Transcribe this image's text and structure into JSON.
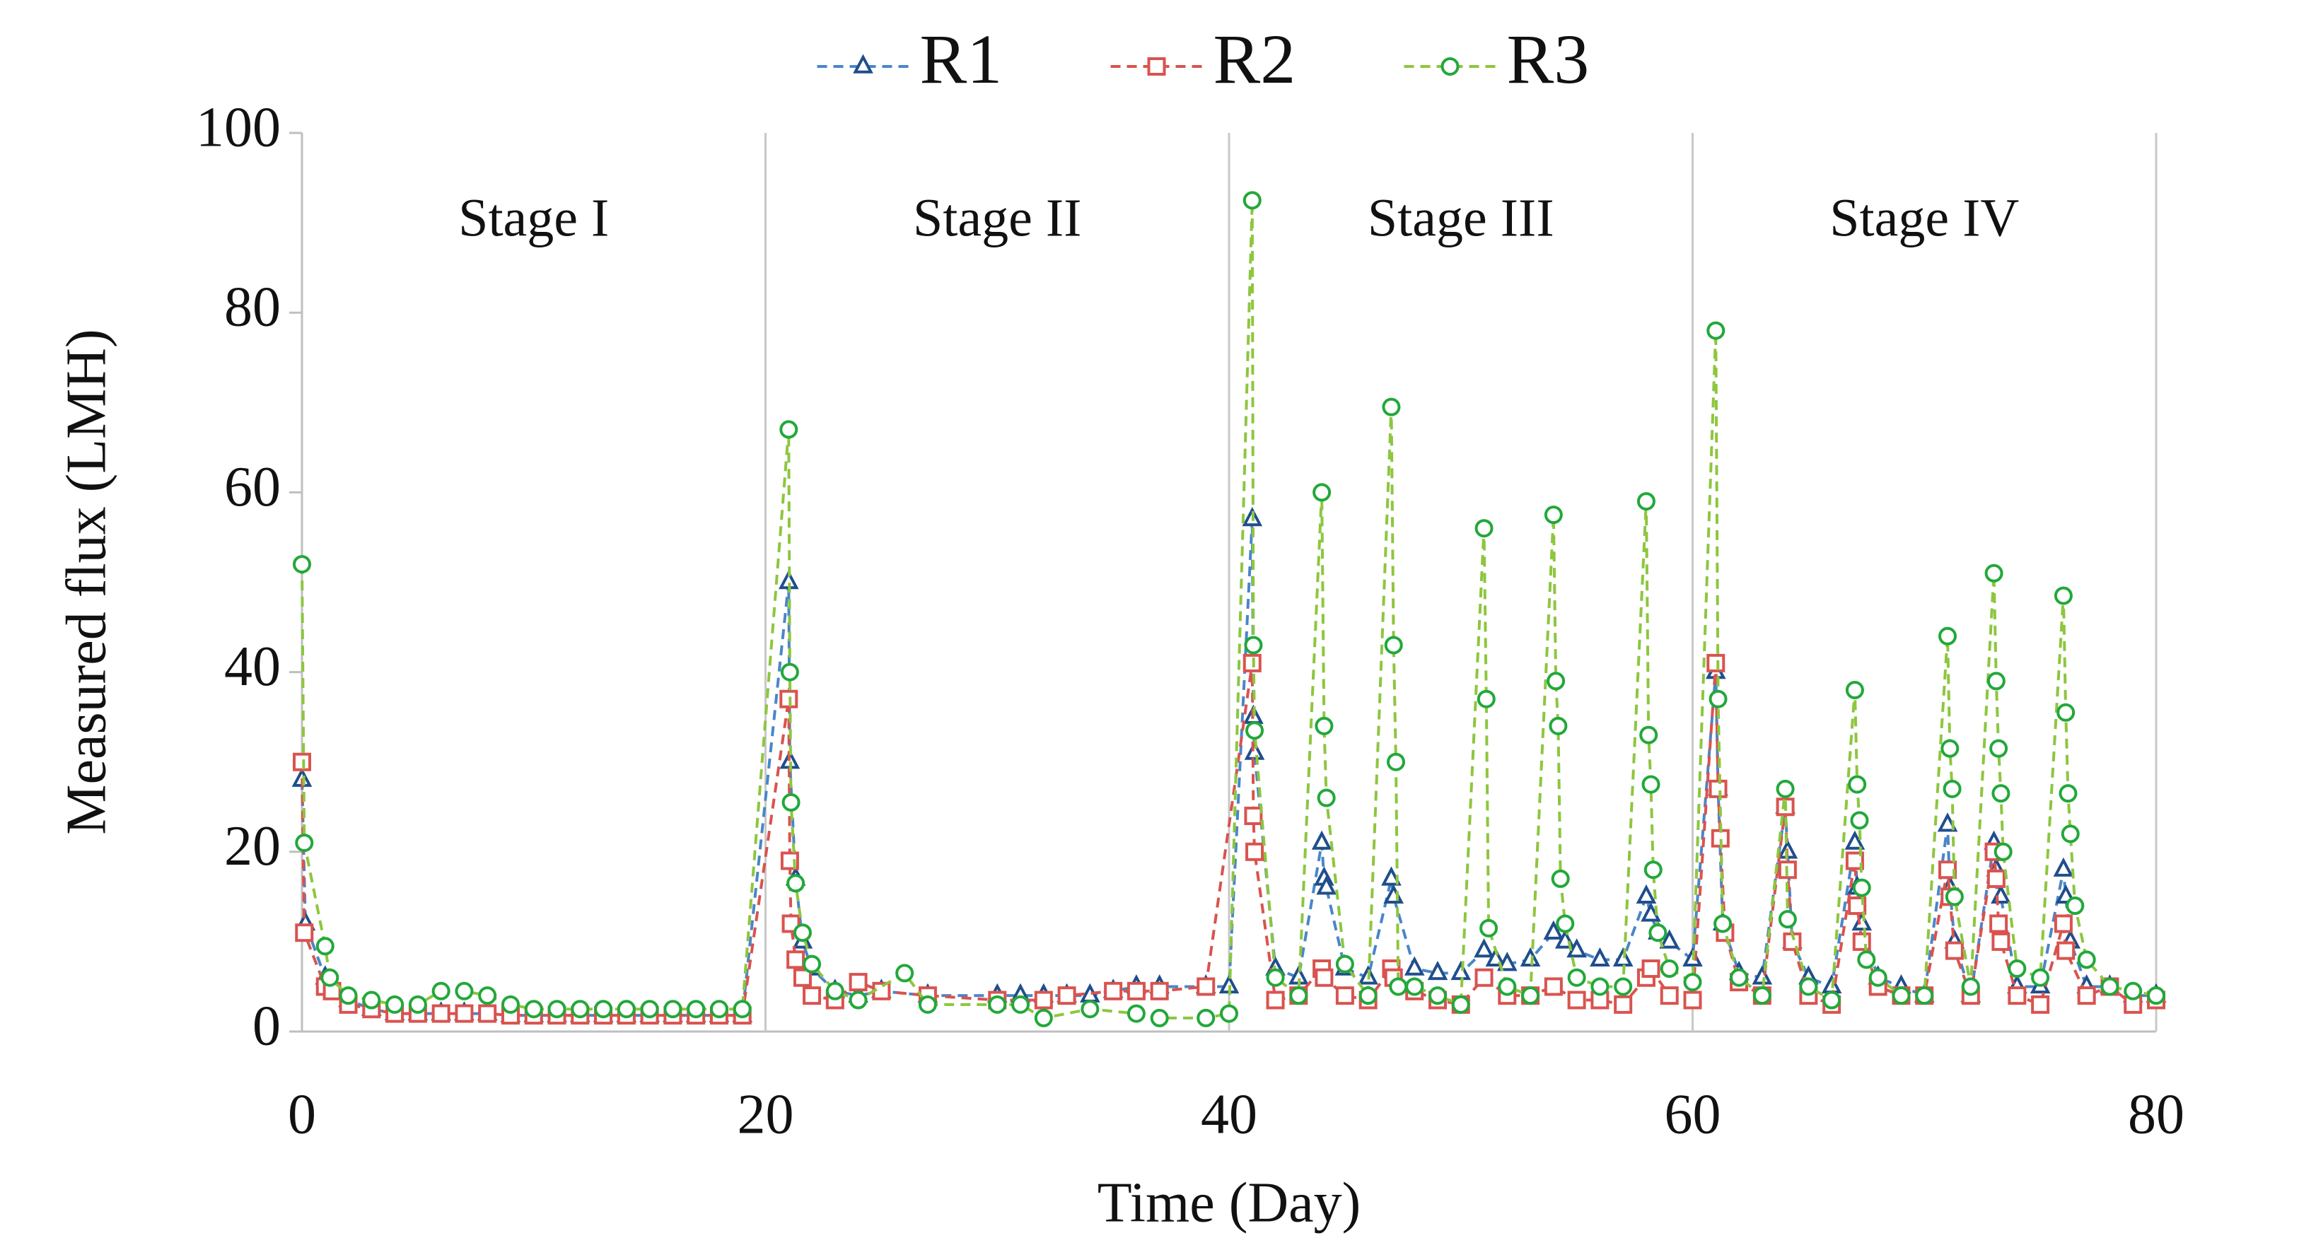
{
  "chart_data": {
    "type": "line",
    "x_label": "Time (Day)",
    "y_label": "Measured flux (LMH)",
    "annotations": [
      "Stage I",
      "Stage II",
      "Stage III",
      "Stage IV"
    ],
    "xlim": [
      0,
      80
    ],
    "xticks": [
      0,
      20,
      40,
      60,
      80
    ],
    "ylim": [
      0,
      100
    ],
    "yticks": [
      0,
      20,
      40,
      60,
      80,
      100
    ],
    "grid": "x",
    "legend": "top",
    "series": [
      {
        "name": "R1",
        "color": "#1f4e8c",
        "line_color": "#4a86c8",
        "marker": "triangle",
        "x": [
          0,
          0.15,
          1,
          1.3,
          2,
          3,
          4,
          5,
          6,
          7,
          8,
          9,
          10,
          11,
          12,
          13,
          14,
          15,
          16,
          17,
          18,
          19,
          21,
          21.05,
          21.3,
          21.6,
          22,
          23,
          24,
          25,
          27,
          30,
          31,
          32,
          33,
          34,
          35,
          36,
          37,
          39,
          40,
          41,
          41.05,
          41.1,
          42,
          43,
          44,
          44.1,
          44.2,
          45,
          46,
          47,
          47.1,
          48,
          49,
          50,
          51,
          51.5,
          52,
          53,
          54,
          54.5,
          55,
          56,
          57,
          58,
          58.2,
          58.5,
          59,
          60,
          61,
          61.1,
          61.3,
          62,
          63,
          64,
          64.1,
          64.3,
          65,
          66,
          67,
          67.1,
          67.3,
          68,
          69,
          70,
          71,
          71.1,
          71.3,
          72,
          73,
          73.1,
          73.3,
          74,
          75,
          76,
          76.1,
          76.3,
          77,
          78,
          79,
          80
        ],
        "values": [
          28,
          12,
          6,
          5,
          3.5,
          2.5,
          2,
          2,
          2,
          2,
          2,
          1.8,
          1.8,
          1.8,
          1.8,
          1.8,
          1.8,
          1.8,
          1.8,
          1.8,
          1.8,
          1.8,
          50,
          30,
          17,
          10,
          7,
          4.5,
          4,
          4.5,
          4,
          4,
          4,
          4,
          4,
          4,
          4.5,
          5,
          5,
          5,
          5,
          57,
          35,
          31,
          7,
          6,
          21,
          17,
          16,
          7,
          6,
          17,
          15,
          7,
          6.5,
          6.5,
          9,
          8,
          7.5,
          8,
          11,
          10,
          9,
          8,
          8,
          15,
          13,
          11,
          10,
          8,
          40,
          27,
          12,
          6.5,
          6,
          25,
          20,
          10,
          6,
          5,
          21,
          16,
          12,
          6,
          5,
          4,
          23,
          16,
          10,
          4,
          21,
          18,
          15,
          5,
          5,
          18,
          15,
          10,
          5,
          5,
          4,
          4
        ]
      },
      {
        "name": "R2",
        "color": "#d9534f",
        "line_color": "#d9534f",
        "marker": "square",
        "x": [
          0,
          0.1,
          1,
          1.3,
          2,
          3,
          4,
          5,
          6,
          7,
          8,
          9,
          10,
          11,
          12,
          13,
          14,
          15,
          16,
          17,
          18,
          19,
          21,
          21.05,
          21.1,
          21.3,
          21.6,
          22,
          23,
          24,
          25,
          27,
          30,
          32,
          33,
          35,
          36,
          37,
          39,
          41,
          41.05,
          41.1,
          42,
          43,
          44,
          44.1,
          45,
          46,
          47,
          47.1,
          48,
          49,
          50,
          51,
          52,
          53,
          54,
          55,
          56,
          57,
          58,
          58.2,
          59,
          60,
          61,
          61.1,
          61.2,
          61.4,
          62,
          63,
          64,
          64.1,
          64.3,
          65,
          66,
          67,
          67.1,
          67.3,
          68,
          69,
          70,
          71,
          71.1,
          71.3,
          72,
          73,
          73.1,
          73.2,
          73.3,
          74,
          75,
          76,
          76.1,
          77,
          78,
          79,
          80
        ],
        "values": [
          30,
          11,
          5,
          4.5,
          3,
          2.5,
          2,
          2,
          2,
          2,
          2,
          1.8,
          1.8,
          1.8,
          1.8,
          1.8,
          1.8,
          1.8,
          1.8,
          1.8,
          1.8,
          1.8,
          37,
          19,
          12,
          8,
          6,
          4,
          3.5,
          5.5,
          4.5,
          4,
          3.5,
          3.5,
          4,
          4.5,
          4.5,
          4.5,
          5,
          41,
          24,
          20,
          3.5,
          4,
          7,
          6,
          4,
          3.5,
          7,
          6,
          4.5,
          3.5,
          3,
          6,
          4,
          4,
          5,
          3.5,
          3.5,
          3,
          6,
          7,
          4,
          3.5,
          41,
          27,
          21.5,
          11,
          5.5,
          4,
          25,
          18,
          10,
          4,
          3,
          19,
          14,
          10,
          5,
          4,
          4,
          18,
          15,
          9,
          4,
          20,
          17,
          12,
          10,
          4,
          3,
          12,
          9,
          4,
          5,
          3,
          3.5
        ]
      },
      {
        "name": "R3",
        "color": "#22a83a",
        "line_color": "#8dc63f",
        "marker": "circle",
        "x": [
          0,
          0.1,
          1,
          1.2,
          2,
          3,
          4,
          5,
          6,
          7,
          8,
          9,
          10,
          11,
          12,
          13,
          14,
          15,
          16,
          17,
          18,
          19,
          21,
          21.05,
          21.1,
          21.3,
          21.6,
          22,
          23,
          24,
          26,
          27,
          30,
          31,
          32,
          34,
          36,
          37,
          39,
          40,
          41,
          41.05,
          41.1,
          42,
          43,
          44,
          44.1,
          44.2,
          45,
          46,
          47,
          47.1,
          47.2,
          47.3,
          48,
          49,
          50,
          51,
          51.1,
          51.2,
          52,
          53,
          54,
          54.1,
          54.2,
          54.3,
          54.5,
          55,
          56,
          57,
          58,
          58.1,
          58.2,
          58.3,
          58.5,
          59,
          60,
          61,
          61.1,
          61.3,
          62,
          63,
          64,
          64.1,
          65,
          66,
          67,
          67.1,
          67.2,
          67.3,
          67.5,
          68,
          69,
          70,
          71,
          71.1,
          71.2,
          71.3,
          72,
          73,
          73.1,
          73.2,
          73.3,
          73.4,
          74,
          75,
          76,
          76.1,
          76.2,
          76.3,
          76.5,
          77,
          78,
          79,
          80
        ],
        "values": [
          52,
          21,
          9.5,
          6,
          4,
          3.5,
          3,
          3,
          4.5,
          4.5,
          4,
          3,
          2.5,
          2.5,
          2.5,
          2.5,
          2.5,
          2.5,
          2.5,
          2.5,
          2.5,
          2.5,
          67,
          40,
          25.5,
          16.5,
          11,
          7.5,
          4.5,
          3.5,
          6.5,
          3,
          3,
          3,
          1.5,
          2.5,
          2,
          1.5,
          1.5,
          2,
          92.5,
          43,
          33.5,
          6,
          4,
          60,
          34,
          26,
          7.5,
          4,
          69.5,
          43,
          30,
          5,
          5,
          4,
          3,
          56,
          37,
          11.5,
          5,
          4,
          57.5,
          39,
          34,
          17,
          12,
          6,
          5,
          5,
          59,
          33,
          27.5,
          18,
          11,
          7,
          5.5,
          78,
          37,
          12,
          6,
          4,
          27,
          12.5,
          5,
          3.5,
          38,
          27.5,
          23.5,
          16,
          8,
          6,
          4,
          4,
          44,
          31.5,
          27,
          15,
          5,
          51,
          39,
          31.5,
          26.5,
          20,
          7,
          6,
          48.5,
          35.5,
          26.5,
          22,
          14,
          8,
          5,
          4.5,
          4
        ]
      }
    ]
  }
}
